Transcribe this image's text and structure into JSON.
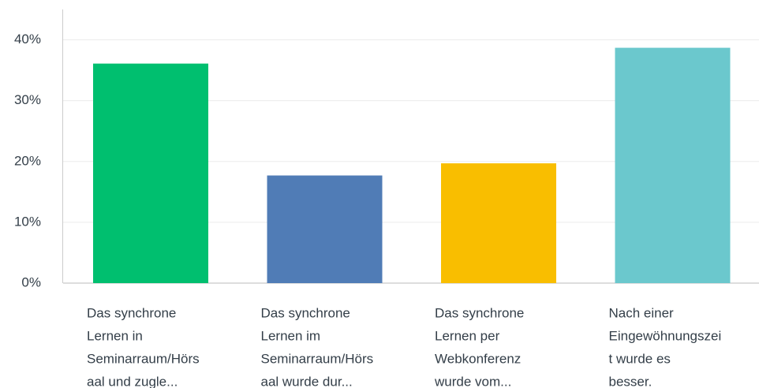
{
  "chart_data": {
    "type": "bar",
    "categories": [
      [
        "Das synchrone",
        "Lernen in",
        "Seminarraum/Hörs",
        "aal und zugle..."
      ],
      [
        "Das synchrone",
        "Lernen im",
        "Seminarraum/Hörs",
        "aal wurde dur..."
      ],
      [
        "Das synchrone",
        "Lernen per",
        "Webkonferenz",
        "wurde vom..."
      ],
      [
        "Nach einer",
        "Eingewöhnungszei",
        "t wurde es",
        "besser."
      ]
    ],
    "values": [
      36.1,
      17.7,
      19.7,
      38.7
    ],
    "colors": [
      "#00bf6f",
      "#507cb6",
      "#f9be00",
      "#6bc8cd"
    ],
    "ylim": [
      0,
      45
    ],
    "yticks": [
      {
        "value": 0,
        "label": "0%"
      },
      {
        "value": 10,
        "label": "10%"
      },
      {
        "value": 20,
        "label": "20%"
      },
      {
        "value": 30,
        "label": "30%"
      },
      {
        "value": 40,
        "label": "40%"
      }
    ],
    "grid": true
  }
}
